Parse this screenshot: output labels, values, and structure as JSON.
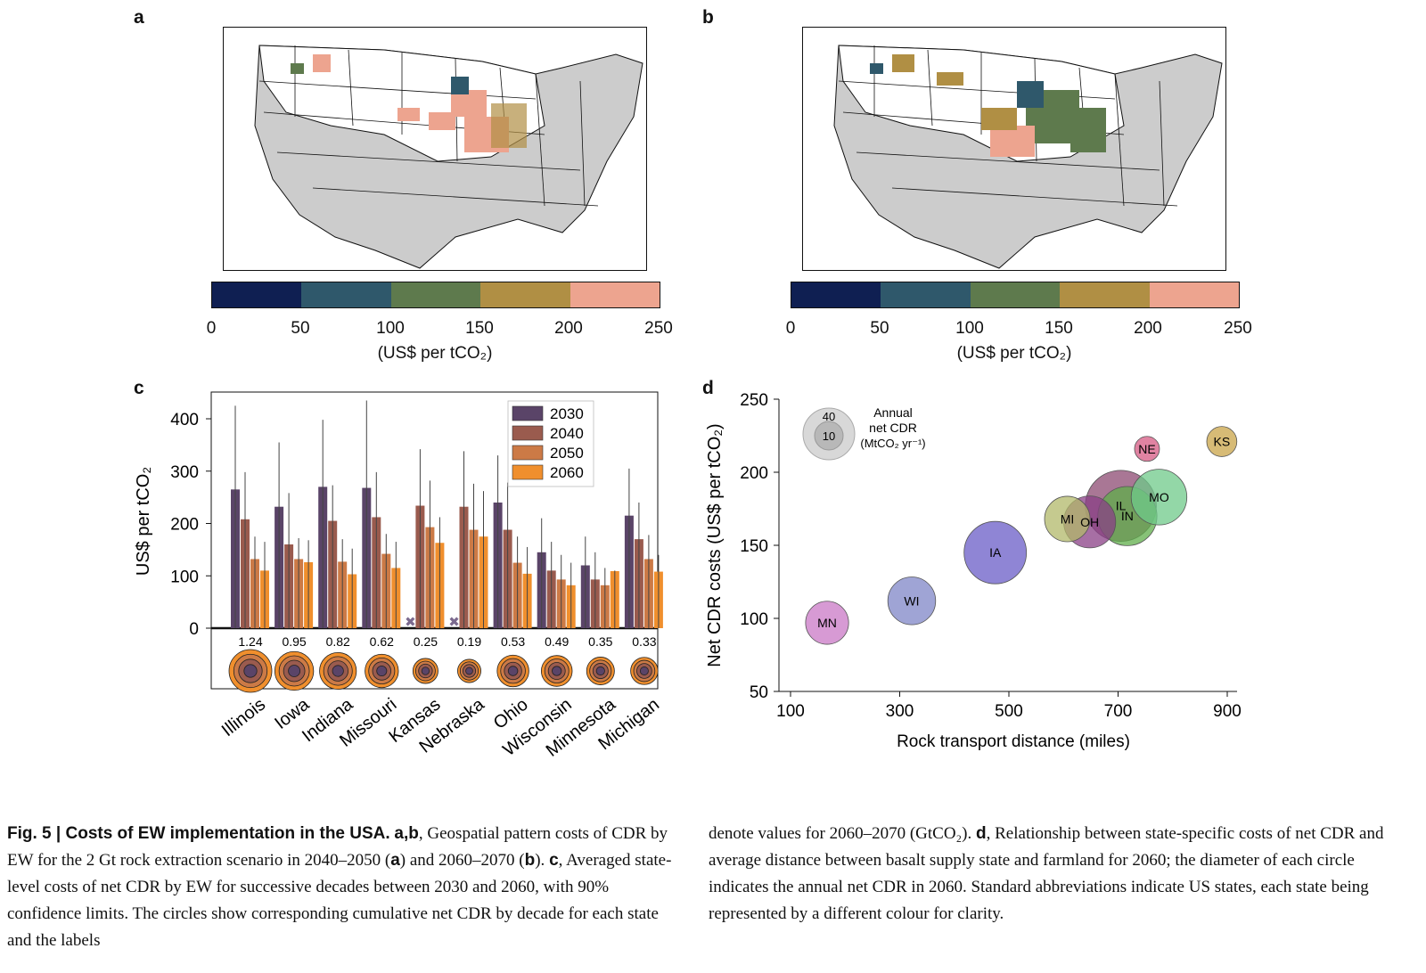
{
  "panels": {
    "a": "a",
    "b": "b",
    "c": "c",
    "d": "d"
  },
  "colorbar": {
    "ticks": [
      "0",
      "50",
      "100",
      "150",
      "200",
      "250"
    ],
    "label": "(US$ per tCO₂)",
    "colors": [
      "#0f1f52",
      "#2f586b",
      "#5e7a4d",
      "#b08f44",
      "#eda48f"
    ]
  },
  "maps": {
    "background_state_color": "#cccccc",
    "state_line_color": "#111111"
  },
  "chart_data": [
    {
      "type": "bar",
      "panel": "c",
      "ylabel": "US$ per tCO₂",
      "ylim": [
        0,
        450
      ],
      "yticks": [
        0,
        100,
        200,
        300,
        400
      ],
      "categories": [
        "Illinois",
        "Iowa",
        "Indiana",
        "Missouri",
        "Kansas",
        "Nebraska",
        "Ohio",
        "Wisconsin",
        "Minnesota",
        "Michigan"
      ],
      "series": [
        {
          "name": "2030",
          "color": "#5a4468",
          "values": [
            265,
            232,
            270,
            268,
            null,
            null,
            240,
            145,
            120,
            215
          ],
          "ci_high": [
            425,
            355,
            398,
            435,
            null,
            null,
            330,
            210,
            175,
            305
          ],
          "ci_low": [
            0,
            0,
            0,
            0,
            null,
            null,
            0,
            0,
            0,
            0
          ]
        },
        {
          "name": "2040",
          "color": "#9a5b4e",
          "values": [
            208,
            160,
            205,
            212,
            234,
            232,
            188,
            110,
            93,
            170
          ],
          "ci_high": [
            298,
            258,
            273,
            298,
            342,
            338,
            278,
            165,
            145,
            240
          ],
          "ci_low": [
            0,
            0,
            0,
            0,
            0,
            0,
            0,
            0,
            0,
            0
          ]
        },
        {
          "name": "2050",
          "color": "#cc7a46",
          "values": [
            132,
            132,
            127,
            142,
            193,
            188,
            125,
            93,
            82,
            132
          ],
          "ci_high": [
            175,
            172,
            170,
            180,
            282,
            276,
            175,
            140,
            115,
            178
          ],
          "ci_low": [
            0,
            0,
            0,
            0,
            0,
            0,
            0,
            0,
            0,
            0
          ]
        },
        {
          "name": "2060",
          "color": "#f08f2d",
          "values": [
            110,
            126,
            103,
            115,
            163,
            175,
            104,
            82,
            109,
            108
          ],
          "ci_high": [
            165,
            168,
            152,
            165,
            212,
            262,
            155,
            125,
            110,
            140
          ],
          "ci_low": [
            0,
            0,
            0,
            0,
            0,
            0,
            0,
            0,
            0,
            0
          ]
        }
      ],
      "missing_marker": "✖",
      "labels_2060_2070_GtCO2": [
        "1.24",
        "0.95",
        "0.82",
        "0.62",
        "0.25",
        "0.19",
        "0.53",
        "0.49",
        "0.35",
        "0.33"
      ],
      "cumulative_circle_scale": [
        1.24,
        0.95,
        0.82,
        0.62,
        0.25,
        0.19,
        0.53,
        0.49,
        0.35,
        0.33
      ],
      "legend": "top-right"
    },
    {
      "type": "scatter",
      "panel": "d",
      "xlabel": "Rock transport distance (miles)",
      "ylabel": "Net CDR costs (US$ per tCO₂)",
      "xlim": [
        100,
        920
      ],
      "ylim": [
        50,
        250
      ],
      "xticks": [
        100,
        300,
        500,
        700,
        900
      ],
      "yticks": [
        50,
        100,
        150,
        200,
        250
      ],
      "points": [
        {
          "label": "MN",
          "x": 167,
          "y": 97,
          "size": 6,
          "color": "#c978c6"
        },
        {
          "label": "WI",
          "x": 322,
          "y": 112,
          "size": 8,
          "color": "#7f86c7"
        },
        {
          "label": "IA",
          "x": 475,
          "y": 145,
          "size": 16,
          "color": "#6a5cc7"
        },
        {
          "label": "MI",
          "x": 607,
          "y": 168,
          "size": 7,
          "color": "#b2b86a"
        },
        {
          "label": "OH",
          "x": 648,
          "y": 166,
          "size": 10,
          "color": "#8a3f86"
        },
        {
          "label": "IL",
          "x": 705,
          "y": 177,
          "size": 22,
          "color": "#8c4a72"
        },
        {
          "label": "IN",
          "x": 717,
          "y": 170,
          "size": 14,
          "color": "#5fae4a"
        },
        {
          "label": "MO",
          "x": 775,
          "y": 183,
          "size": 12,
          "color": "#6fca8a"
        },
        {
          "label": "NE",
          "x": 753,
          "y": 216,
          "size": 1,
          "color": "#d65a83"
        },
        {
          "label": "KS",
          "x": 890,
          "y": 221,
          "size": 2,
          "color": "#c9a448"
        }
      ],
      "size_legend": {
        "title_lines": [
          "Annual",
          "net CDR"
        ],
        "unit_text": "(MtCO₂ yr⁻¹)",
        "values": [
          "40",
          "10"
        ]
      }
    }
  ],
  "caption": {
    "left_bold": "Fig. 5 | Costs of EW implementation in the USA.",
    "left_ab": "a",
    "left_comma": ",",
    "left_b": "b",
    "left_text1": ", Geospatial pattern costs of CDR by EW for the 2 Gt rock extraction scenario in 2040–2050 (",
    "left_text2": ") and 2060–2070 (",
    "left_text3": "). ",
    "left_c": "c",
    "left_text4": ", Averaged state-level costs of net CDR by EW for successive decades between 2030 and 2060, with 90% confidence limits. The circles show corresponding cumulative net CDR by decade for each state and the labels",
    "right_text1": "denote values for 2060–2070 (GtCO₂). ",
    "right_d": "d",
    "right_text2": ", Relationship between state-specific costs of net CDR and average distance between basalt supply state and farmland for 2060; the diameter of each circle indicates the annual net CDR in 2060. Standard abbreviations indicate US states, each state being represented by a different colour for clarity."
  }
}
